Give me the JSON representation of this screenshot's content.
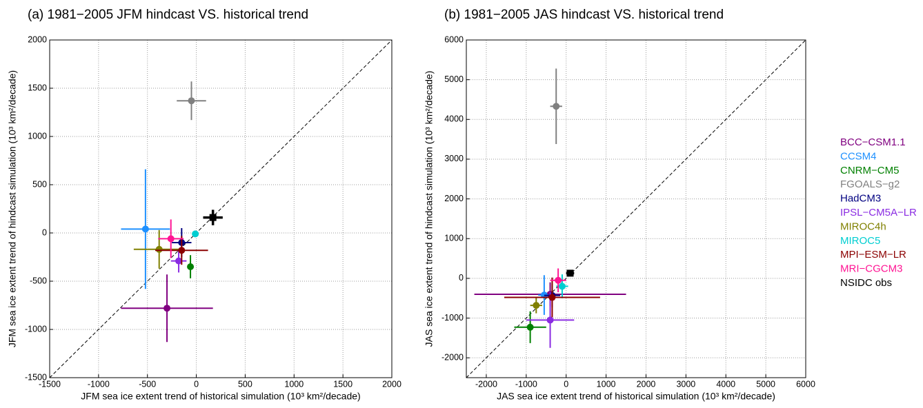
{
  "chart_data": [
    {
      "type": "scatter",
      "title": "(a) 1981−2005 JFM hindcast VS. historical trend",
      "x_label": "JFM sea ice extent trend of historical simulation (10³ km²/decade)",
      "y_label": "JFM sea ice extent trend of hindcast simulation (10³ km²/decade)",
      "xlim": [
        -1500,
        2000
      ],
      "xticks": [
        -1500,
        -1000,
        -500,
        0,
        500,
        1000,
        1500,
        2000
      ],
      "ylim": [
        -1500,
        2000
      ],
      "yticks": [
        -1500,
        -1000,
        -500,
        0,
        500,
        1000,
        1500,
        2000
      ],
      "grid": true,
      "series": [
        {
          "name": "BCC−CSM1.1",
          "color": "#800080",
          "x": -300,
          "y": -780,
          "xerr": 470,
          "yerr": 350
        },
        {
          "name": "CCSM4",
          "color": "#1e90ff",
          "x": -520,
          "y": 40,
          "xerr": 250,
          "yerr": 620
        },
        {
          "name": "CNRM−CM5",
          "color": "#008000",
          "x": -60,
          "y": -350,
          "xerr": 30,
          "yerr": 120
        },
        {
          "name": "FGOALS−g2",
          "color": "#808080",
          "x": -50,
          "y": 1370,
          "xerr": 150,
          "yerr": 200
        },
        {
          "name": "HadCM3",
          "color": "#000080",
          "x": -150,
          "y": -100,
          "xerr": 100,
          "yerr": 150
        },
        {
          "name": "IPSL−CM5A−LR",
          "color": "#8a2be2",
          "x": -180,
          "y": -290,
          "xerr": 80,
          "yerr": 120
        },
        {
          "name": "MIROC4h",
          "color": "#808000",
          "x": -380,
          "y": -170,
          "xerr": 260,
          "yerr": 200
        },
        {
          "name": "MIROC5",
          "color": "#00ced1",
          "x": -10,
          "y": -10,
          "xerr": 20,
          "yerr": 30
        },
        {
          "name": "MPI−ESM−LR",
          "color": "#8b0000",
          "x": -150,
          "y": -180,
          "xerr": 270,
          "yerr": 150
        },
        {
          "name": "MRI−CGCM3",
          "color": "#ff1493",
          "x": -260,
          "y": -60,
          "xerr": 130,
          "yerr": 200
        },
        {
          "name": "NSIDC obs",
          "color": "#000000",
          "x": 170,
          "y": 160,
          "xerr": 100,
          "yerr": 80
        }
      ]
    },
    {
      "type": "scatter",
      "title": "(b) 1981−2005 JAS hindcast VS. historical trend",
      "x_label": "JAS sea ice extent trend of historical simulation (10³ km²/decade)",
      "y_label": "JAS sea ice extent trend of hindcast simulation (10³ km²/decade)",
      "xlim": [
        -2500,
        6000
      ],
      "xticks": [
        -2000,
        -1000,
        0,
        1000,
        2000,
        3000,
        4000,
        5000,
        6000
      ],
      "ylim": [
        -2500,
        6000
      ],
      "yticks": [
        -2000,
        -1000,
        0,
        1000,
        2000,
        3000,
        4000,
        5000,
        6000
      ],
      "grid": true,
      "series": [
        {
          "color": "#800080",
          "x": -400,
          "y": -400,
          "xerr": 1900,
          "yerr": 300
        },
        {
          "color": "#1e90ff",
          "x": -550,
          "y": -420,
          "xerr": 150,
          "yerr": 500
        },
        {
          "color": "#008000",
          "x": -900,
          "y": -1230,
          "xerr": 400,
          "yerr": 400
        },
        {
          "color": "#808080",
          "x": -250,
          "y": 4330,
          "xerr": 150,
          "yerr": 950
        },
        {
          "color": "#000080",
          "x": -350,
          "y": -430,
          "xerr": 200,
          "yerr": 300
        },
        {
          "color": "#8a2be2",
          "x": -400,
          "y": -1050,
          "xerr": 600,
          "yerr": 700
        },
        {
          "color": "#808000",
          "x": -750,
          "y": -680,
          "xerr": 150,
          "yerr": 200
        },
        {
          "color": "#00ced1",
          "x": -100,
          "y": -200,
          "xerr": 150,
          "yerr": 300
        },
        {
          "color": "#8b0000",
          "x": -350,
          "y": -480,
          "xerr": 1200,
          "yerr": 500
        },
        {
          "color": "#ff1493",
          "x": -200,
          "y": -50,
          "xerr": 200,
          "yerr": 300
        },
        {
          "color": "#000000",
          "x": 100,
          "y": 130,
          "xerr": 100,
          "yerr": 80
        }
      ]
    }
  ]
}
